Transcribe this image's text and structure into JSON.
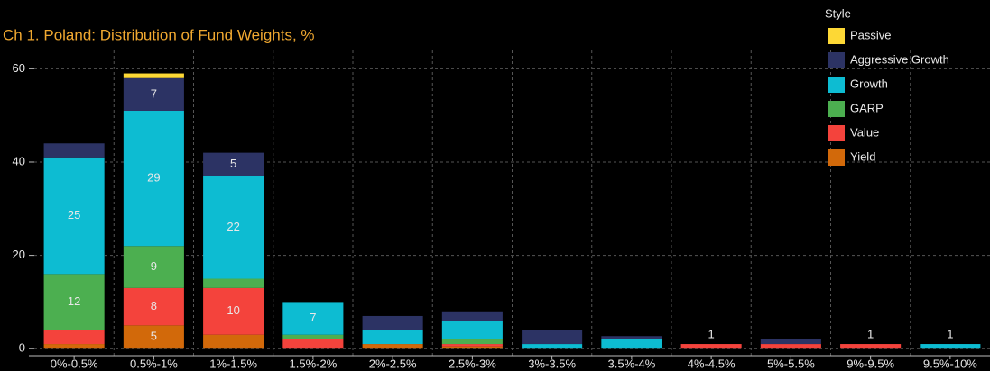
{
  "chart_data": {
    "type": "stacked_bar",
    "title": "Ch 1. Poland:  Distribution of Fund Weights, %",
    "legend_title": "Style",
    "categories": [
      "0%-0.5%",
      "0.5%-1%",
      "1%-1.5%",
      "1.5%-2%",
      "2%-2.5%",
      "2.5%-3%",
      "3%-3.5%",
      "3.5%-4%",
      "4%-4.5%",
      "5%-5.5%",
      "9%-9.5%",
      "9.5%-10%"
    ],
    "series": [
      {
        "name": "Yield",
        "color": "#d2690a",
        "values": [
          1,
          5,
          3,
          0,
          1,
          0.5,
          0,
          0,
          0,
          0,
          0,
          0
        ],
        "value_labels": [
          null,
          "5",
          null,
          null,
          null,
          null,
          null,
          null,
          null,
          null,
          null,
          null
        ]
      },
      {
        "name": "Value",
        "color": "#f4433c",
        "values": [
          3,
          8,
          10,
          2,
          0,
          0.5,
          0,
          0,
          1,
          1,
          1,
          0
        ],
        "value_labels": [
          null,
          "8",
          "10",
          null,
          null,
          null,
          null,
          null,
          "1",
          null,
          "1",
          null
        ]
      },
      {
        "name": "GARP",
        "color": "#4caf50",
        "values": [
          12,
          9,
          2,
          1,
          0,
          1,
          0,
          0,
          0,
          0,
          0,
          0
        ],
        "value_labels": [
          "12",
          "9",
          null,
          null,
          null,
          null,
          null,
          null,
          null,
          null,
          null,
          null
        ]
      },
      {
        "name": "Growth",
        "color": "#0dbcd2",
        "values": [
          25,
          29,
          22,
          7,
          3,
          4,
          1,
          2,
          0,
          0,
          0,
          1
        ],
        "value_labels": [
          "25",
          "29",
          "22",
          "7",
          null,
          null,
          null,
          null,
          null,
          null,
          null,
          "1"
        ]
      },
      {
        "name": "Aggressive Growth",
        "color": "#2c3364",
        "values": [
          3,
          7,
          5,
          0,
          3,
          2,
          3,
          0.7,
          0,
          1,
          0,
          0
        ],
        "value_labels": [
          null,
          "7",
          "5",
          null,
          null,
          null,
          null,
          null,
          null,
          null,
          null,
          null
        ]
      },
      {
        "name": "Passive",
        "color": "#fdd835",
        "values": [
          0,
          1,
          0,
          0,
          0,
          0,
          0,
          0,
          0,
          0,
          0,
          0
        ],
        "value_labels": [
          null,
          null,
          null,
          null,
          null,
          null,
          null,
          null,
          null,
          null,
          null,
          null
        ]
      }
    ],
    "ylim": [
      -1.5,
      62
    ],
    "yticks": [
      0,
      20,
      40,
      60
    ],
    "grid": true,
    "legend": "upper right"
  }
}
